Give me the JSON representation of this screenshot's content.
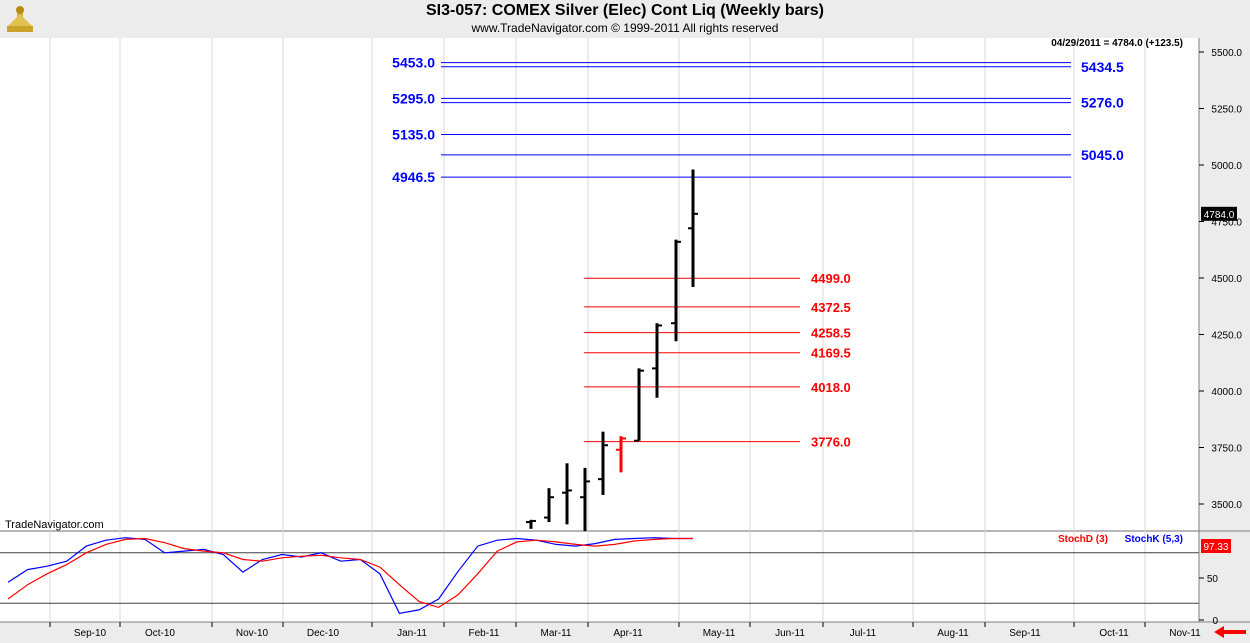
{
  "header": {
    "title": "SI3-057:  COMEX Silver (Elec) Cont Liq  (Weekly bars)",
    "subtitle": "www.TradeNavigator.com © 1999-2011 All rights reserved"
  },
  "watermark": "TradeNavigator.com",
  "colors": {
    "blue": "#0000ff",
    "red": "#ff0000",
    "bars": "#000000"
  },
  "chart_data": [
    {
      "type": "bar",
      "subtype": "ohlc",
      "title": "SI3-057:  COMEX Silver (Elec) Cont Liq  (Weekly bars)",
      "readout": "04/29/2011 = 4784.0 (+123.5)",
      "last_price_label": "4784.0",
      "ylim": [
        3400,
        5575
      ],
      "yticks": [
        "5500.0",
        "5250.0",
        "5000.0",
        "4750.0",
        "4500.0",
        "4250.0",
        "4000.0",
        "3750.0",
        "3500.0"
      ],
      "ytick_values": [
        5500,
        5250,
        5000,
        4750,
        4500,
        4250,
        4000,
        3750,
        3500
      ],
      "x_labels": [
        "Sep-10",
        "Oct-10",
        "Nov-10",
        "Dec-10",
        "Jan-11",
        "Feb-11",
        "Mar-11",
        "Apr-11",
        "May-11",
        "Jun-11",
        "Jul-11",
        "Aug-11",
        "Sep-11",
        "Oct-11",
        "Nov-11"
      ],
      "bars": [
        {
          "week": "2011-02-25",
          "open": 3420,
          "high": 3430,
          "low": 3390,
          "close": 3425
        },
        {
          "week": "2011-03-04",
          "open": 3440,
          "high": 3570,
          "low": 3420,
          "close": 3530
        },
        {
          "week": "2011-03-11",
          "open": 3550,
          "high": 3680,
          "low": 3410,
          "close": 3560
        },
        {
          "week": "2011-03-18",
          "open": 3530,
          "high": 3660,
          "low": 3380,
          "close": 3600
        },
        {
          "week": "2011-03-25",
          "open": 3610,
          "high": 3820,
          "low": 3540,
          "close": 3760
        },
        {
          "week": "2011-04-01",
          "open": 3740,
          "high": 3800,
          "low": 3640,
          "close": 3790
        },
        {
          "week": "2011-04-08",
          "open": 3780,
          "high": 4100,
          "low": 3780,
          "close": 4090
        },
        {
          "week": "2011-04-15",
          "open": 4100,
          "high": 4300,
          "low": 3970,
          "close": 4290
        },
        {
          "week": "2011-04-22",
          "open": 4300,
          "high": 4670,
          "low": 4220,
          "close": 4660
        },
        {
          "week": "2011-04-29",
          "open": 4720,
          "high": 4980,
          "low": 4460,
          "close": 4784
        }
      ],
      "bar_colors": [
        "#000000",
        "#000000",
        "#000000",
        "#000000",
        "#000000",
        "#ff0000",
        "#000000",
        "#000000",
        "#000000",
        "#000000"
      ],
      "projection_levels_blue": [
        {
          "value": 5453.0,
          "label": "5453.0",
          "side": "left"
        },
        {
          "value": 5434.5,
          "label": "5434.5",
          "side": "right"
        },
        {
          "value": 5295.0,
          "label": "5295.0",
          "side": "left"
        },
        {
          "value": 5276.0,
          "label": "5276.0",
          "side": "right"
        },
        {
          "value": 5135.0,
          "label": "5135.0",
          "side": "left"
        },
        {
          "value": 5045.0,
          "label": "5045.0",
          "side": "right"
        },
        {
          "value": 4946.5,
          "label": "4946.5",
          "side": "left"
        }
      ],
      "retracement_levels_red": [
        {
          "value": 4499.0,
          "label": "4499.0"
        },
        {
          "value": 4372.5,
          "label": "4372.5"
        },
        {
          "value": 4258.5,
          "label": "4258.5"
        },
        {
          "value": 4169.5,
          "label": "4169.5"
        },
        {
          "value": 4018.0,
          "label": "4018.0"
        },
        {
          "value": 3776.0,
          "label": "3776.0"
        }
      ]
    },
    {
      "type": "line",
      "title": "",
      "legend": [
        {
          "name": "StochD (3)",
          "color": "#ff0000"
        },
        {
          "name": "StochK (5,3)",
          "color": "#0000ff"
        }
      ],
      "ylim": [
        0,
        100
      ],
      "yticks": [
        "50",
        "0"
      ],
      "ytick_values": [
        50,
        0
      ],
      "reference_lines": [
        80,
        20
      ],
      "last_value_label": "97.33",
      "x": [
        0,
        1,
        2,
        3,
        4,
        5,
        6,
        7,
        8,
        9,
        10,
        11,
        12,
        13,
        14,
        15,
        16,
        17,
        18,
        19,
        20,
        21,
        22,
        23,
        24,
        25,
        26,
        27,
        28,
        29,
        30,
        31,
        32,
        33,
        34,
        35
      ],
      "series": [
        {
          "name": "StochK (5,3)",
          "color": "#0000ff",
          "values": [
            45,
            60,
            64,
            70,
            88,
            95,
            98,
            96,
            80,
            82,
            84,
            78,
            57,
            72,
            78,
            75,
            80,
            70,
            72,
            55,
            8,
            12,
            25,
            58,
            88,
            95,
            97,
            95,
            90,
            88,
            91,
            96,
            97,
            98,
            97,
            97
          ]
        },
        {
          "name": "StochD (3)",
          "color": "#ff0000",
          "values": [
            25,
            42,
            55,
            66,
            80,
            90,
            96,
            97,
            92,
            85,
            82,
            80,
            72,
            70,
            74,
            76,
            77,
            74,
            72,
            63,
            42,
            22,
            15,
            30,
            55,
            82,
            93,
            95,
            93,
            90,
            88,
            90,
            94,
            96,
            97,
            97
          ]
        }
      ]
    }
  ]
}
